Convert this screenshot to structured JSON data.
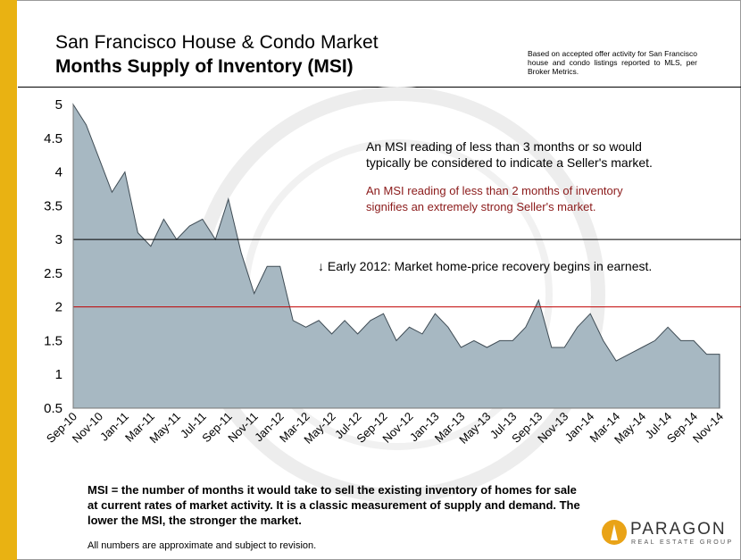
{
  "header": {
    "title_line1": "San Francisco House & Condo Market",
    "title_line2": "Months Supply of Inventory (MSI)",
    "source_note": "Based on accepted offer activity for San Francisco house and condo listings reported to MLS, per Broker Metrics."
  },
  "annotations": {
    "seller_market": [
      "An MSI reading of less than 3 months or so would",
      "typically be considered to indicate a Seller's market."
    ],
    "strong_seller_market": [
      "An MSI reading of less than 2 months of inventory",
      "signifies an extremely strong Seller's market."
    ],
    "early_2012": "↓ Early 2012: Market home-price recovery begins in earnest."
  },
  "footnote": {
    "definition": "MSI = the number of months it would take to sell the existing inventory of homes for sale at current rates of market activity.  It is a classic measurement of supply and demand. The lower the MSI, the stronger the market.",
    "disclaimer": "All numbers are approximate and subject to revision."
  },
  "logo": {
    "name": "PARAGON",
    "tagline": "REAL ESTATE GROUP"
  },
  "colors": {
    "area_fill": "#a7b8c2",
    "area_stroke": "#3f4c55",
    "threshold_3": "#000000",
    "threshold_2": "#c00000",
    "accent_bar": "#e9b212"
  },
  "chart_data": {
    "type": "area",
    "x": [
      "Sep-10",
      "Oct-10",
      "Nov-10",
      "Dec-10",
      "Jan-11",
      "Feb-11",
      "Mar-11",
      "Apr-11",
      "May-11",
      "Jun-11",
      "Jul-11",
      "Aug-11",
      "Sep-11",
      "Oct-11",
      "Nov-11",
      "Dec-11",
      "Jan-12",
      "Feb-12",
      "Mar-12",
      "Apr-12",
      "May-12",
      "Jun-12",
      "Jul-12",
      "Aug-12",
      "Sep-12",
      "Oct-12",
      "Nov-12",
      "Dec-12",
      "Jan-13",
      "Feb-13",
      "Mar-13",
      "Apr-13",
      "May-13",
      "Jun-13",
      "Jul-13",
      "Aug-13",
      "Sep-13",
      "Oct-13",
      "Nov-13",
      "Dec-13",
      "Jan-14",
      "Feb-14",
      "Mar-14",
      "Apr-14",
      "May-14",
      "Jun-14",
      "Jul-14",
      "Aug-14",
      "Sep-14",
      "Oct-14",
      "Nov-14"
    ],
    "x_tick_labels": [
      "Sep-10",
      "Nov-10",
      "Jan-11",
      "Mar-11",
      "May-11",
      "Jul-11",
      "Sep-11",
      "Nov-11",
      "Jan-12",
      "Mar-12",
      "May-12",
      "Jul-12",
      "Sep-12",
      "Nov-12",
      "Jan-13",
      "Mar-13",
      "May-13",
      "Jul-13",
      "Sep-13",
      "Nov-13",
      "Jan-14",
      "Mar-14",
      "May-14",
      "Jul-14",
      "Sep-14",
      "Nov-14"
    ],
    "values": [
      5.0,
      4.7,
      4.2,
      3.7,
      4.0,
      3.1,
      2.9,
      3.3,
      3.0,
      3.2,
      3.3,
      3.0,
      3.6,
      2.8,
      2.2,
      2.6,
      2.6,
      1.8,
      1.7,
      1.8,
      1.6,
      1.8,
      1.6,
      1.8,
      1.9,
      1.5,
      1.7,
      1.6,
      1.9,
      1.7,
      1.4,
      1.5,
      1.4,
      1.5,
      1.5,
      1.7,
      2.1,
      1.4,
      1.4,
      1.7,
      1.9,
      1.5,
      1.2,
      1.3,
      1.4,
      1.5,
      1.7,
      1.5,
      1.5,
      1.3,
      1.3
    ],
    "ylim": [
      0.5,
      5
    ],
    "y_ticks": [
      "0.5",
      "1",
      "1.5",
      "2",
      "2.5",
      "3",
      "3.5",
      "4",
      "4.5",
      "5"
    ],
    "reference_lines": [
      3,
      2
    ],
    "grid": false,
    "title": "Months Supply of Inventory (MSI)",
    "xlabel": "",
    "ylabel": ""
  }
}
